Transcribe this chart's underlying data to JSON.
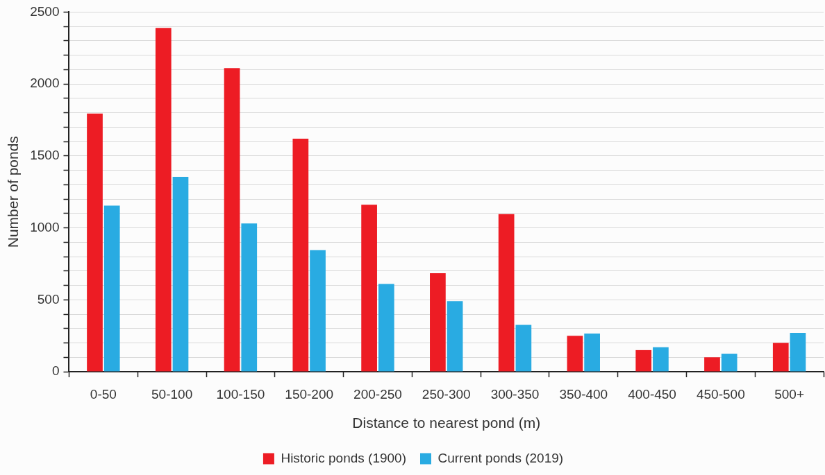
{
  "chart_data": {
    "type": "bar",
    "xlabel": "Distance to nearest pond (m)",
    "ylabel": "Number of ponds",
    "categories": [
      "0-50",
      "50-100",
      "100-150",
      "150-200",
      "200-250",
      "250-300",
      "300-350",
      "350-400",
      "400-450",
      "450-500",
      "500+"
    ],
    "series": [
      {
        "name": "Historic ponds (1900)",
        "color": "#ed1c24",
        "values": [
          1795,
          2390,
          2110,
          1620,
          1160,
          685,
          1095,
          250,
          150,
          100,
          200
        ]
      },
      {
        "name": "Current ponds (2019)",
        "color": "#29abe2",
        "values": [
          1155,
          1355,
          1030,
          845,
          610,
          490,
          325,
          265,
          170,
          125,
          270
        ]
      }
    ],
    "ylim": [
      0,
      2500
    ],
    "yticks": [
      0,
      {
        "value": 100,
        "label": null
      },
      {
        "value": 200,
        "label": null
      },
      {
        "value": 300,
        "label": null
      },
      {
        "value": 400,
        "label": null
      },
      500,
      {
        "value": 600,
        "label": null
      },
      {
        "value": 700,
        "label": null
      },
      {
        "value": 800,
        "label": null
      },
      {
        "value": 900,
        "label": null
      },
      1000,
      {
        "value": 1100,
        "label": null
      },
      {
        "value": 1200,
        "label": null
      },
      {
        "value": 1300,
        "label": null
      },
      {
        "value": 1400,
        "label": null
      },
      1500,
      {
        "value": 1600,
        "label": null
      },
      {
        "value": 1700,
        "label": null
      },
      {
        "value": 1800,
        "label": null
      },
      {
        "value": 1900,
        "label": null
      },
      2000,
      {
        "value": 2100,
        "label": null
      },
      {
        "value": 2200,
        "label": null
      },
      {
        "value": 2300,
        "label": null
      },
      {
        "value": 2400,
        "label": null
      },
      2500
    ],
    "grid": "y",
    "legend": "bottom"
  }
}
